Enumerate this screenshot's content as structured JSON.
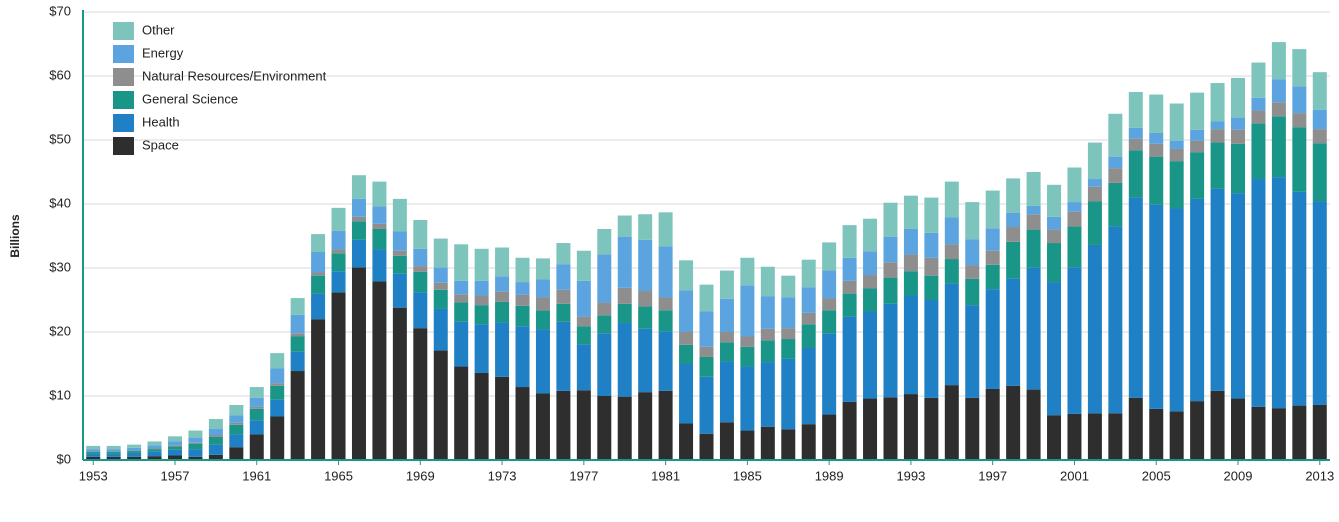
{
  "chart_data": {
    "type": "stacked-bar",
    "y_label": "Billions",
    "categories": [
      "1953",
      null,
      null,
      null,
      "1957",
      null,
      null,
      null,
      "1961",
      null,
      null,
      null,
      "1965",
      null,
      null,
      null,
      "1969",
      null,
      null,
      null,
      "1973",
      null,
      null,
      null,
      "1977",
      null,
      null,
      null,
      "1981",
      null,
      null,
      null,
      "1985",
      null,
      null,
      null,
      "1989",
      null,
      null,
      null,
      "1993",
      null,
      null,
      null,
      "1997",
      null,
      null,
      null,
      "2001",
      null,
      null,
      null,
      "2005",
      null,
      null,
      null,
      "2009",
      null,
      null,
      null,
      "2013"
    ],
    "series": [
      {
        "name": "Space",
        "color": "#2e2e2e",
        "values": [
          0.5,
          0.5,
          0.5,
          0.6,
          0.7,
          0.5,
          0.8,
          2.0,
          4.0,
          6.8,
          13.9,
          22.0,
          26.2,
          30.1,
          27.9,
          23.8,
          20.6,
          17.1,
          14.6,
          13.6,
          13.0,
          11.4,
          10.4,
          10.8,
          10.9,
          10.0,
          9.9,
          10.6,
          10.8,
          5.7,
          4.1,
          5.9,
          4.6,
          5.2,
          4.8,
          5.6,
          7.1,
          9.1,
          9.6,
          9.8,
          10.3,
          9.7,
          11.7,
          9.7,
          11.1,
          11.6,
          11.0,
          7.0,
          7.2,
          7.3,
          7.3,
          9.7,
          8.0,
          7.6,
          9.2,
          10.8,
          9.6,
          8.3,
          8.1,
          8.5,
          8.6
        ]
      },
      {
        "name": "Health",
        "color": "#1f80c6",
        "values": [
          0.5,
          0.5,
          0.6,
          0.7,
          0.9,
          1.2,
          1.6,
          2.0,
          2.2,
          2.6,
          3.0,
          4.0,
          3.3,
          4.3,
          5.0,
          5.3,
          5.6,
          6.5,
          7.0,
          7.6,
          8.5,
          9.5,
          10.0,
          10.8,
          7.2,
          9.8,
          11.5,
          9.9,
          9.3,
          9.3,
          8.9,
          9.5,
          10.0,
          10.1,
          11.0,
          11.9,
          12.7,
          13.3,
          13.6,
          14.6,
          15.4,
          15.3,
          15.9,
          14.5,
          15.6,
          16.8,
          19.1,
          20.8,
          22.9,
          26.3,
          29.2,
          31.3,
          31.9,
          31.7,
          31.6,
          31.6,
          32.1,
          35.6,
          36.1,
          33.4,
          31.8
        ]
      },
      {
        "name": "General Science",
        "color": "#1a9689",
        "values": [
          0.3,
          0.3,
          0.3,
          0.4,
          0.5,
          0.8,
          1.2,
          1.5,
          1.8,
          2.2,
          2.4,
          2.8,
          2.8,
          2.9,
          3.2,
          2.8,
          3.2,
          3.0,
          3.0,
          3.0,
          3.2,
          3.2,
          3.0,
          2.8,
          2.8,
          2.8,
          3.0,
          3.5,
          3.3,
          3.0,
          3.1,
          3.0,
          3.1,
          3.4,
          3.1,
          3.7,
          3.6,
          3.6,
          3.6,
          4.1,
          3.8,
          3.8,
          3.8,
          4.1,
          3.8,
          5.7,
          5.9,
          6.1,
          6.4,
          6.8,
          6.8,
          7.4,
          7.5,
          7.4,
          7.3,
          7.2,
          7.7,
          8.7,
          9.5,
          10.1,
          9.1
        ]
      },
      {
        "name": "Natural Resources/Environment",
        "color": "#8e8e8e",
        "values": [
          0.1,
          0.1,
          0.1,
          0.1,
          0.2,
          0.2,
          0.3,
          0.3,
          0.3,
          0.4,
          0.5,
          0.5,
          0.6,
          0.7,
          0.8,
          0.8,
          0.9,
          1.1,
          1.3,
          1.5,
          1.6,
          1.7,
          2.0,
          2.2,
          1.5,
          2.0,
          2.5,
          2.4,
          2.0,
          2.0,
          1.6,
          1.6,
          1.6,
          1.8,
          1.7,
          1.8,
          1.9,
          2.0,
          2.1,
          2.4,
          2.6,
          2.8,
          2.3,
          2.1,
          2.2,
          2.3,
          2.4,
          2.1,
          2.3,
          2.3,
          2.3,
          1.8,
          2.0,
          1.9,
          1.8,
          2.1,
          2.2,
          2.0,
          2.2,
          2.2,
          2.2
        ]
      },
      {
        "name": "Energy",
        "color": "#5ba4e0",
        "values": [
          0.3,
          0.3,
          0.4,
          0.5,
          0.6,
          0.8,
          1.0,
          1.2,
          1.4,
          2.3,
          2.9,
          3.2,
          2.9,
          2.8,
          2.7,
          3.0,
          2.7,
          2.4,
          2.1,
          2.3,
          2.4,
          2.0,
          2.8,
          4.0,
          5.6,
          7.5,
          8.0,
          8.0,
          8.0,
          6.5,
          5.5,
          5.2,
          8.0,
          5.1,
          4.8,
          4.0,
          4.3,
          3.6,
          3.7,
          4.0,
          4.0,
          3.9,
          4.2,
          4.1,
          3.5,
          2.2,
          1.3,
          2.0,
          1.5,
          1.2,
          1.8,
          1.7,
          1.7,
          1.3,
          1.7,
          1.2,
          1.9,
          2.0,
          3.6,
          4.2,
          3.0
        ]
      },
      {
        "name": "Other",
        "color": "#7dc4bc",
        "values": [
          0.5,
          0.5,
          0.5,
          0.6,
          0.8,
          1.1,
          1.5,
          1.6,
          1.7,
          2.4,
          2.6,
          2.8,
          3.6,
          3.7,
          3.9,
          5.1,
          4.5,
          4.5,
          5.7,
          5.0,
          4.5,
          3.8,
          3.3,
          3.3,
          4.7,
          4.0,
          3.3,
          4.0,
          5.3,
          4.7,
          4.2,
          4.4,
          4.3,
          4.6,
          3.4,
          4.3,
          4.4,
          5.1,
          5.1,
          5.3,
          5.2,
          5.5,
          5.6,
          5.8,
          5.9,
          5.4,
          5.3,
          5.0,
          5.4,
          5.7,
          6.7,
          5.6,
          6.0,
          5.8,
          5.8,
          6.0,
          6.2,
          5.5,
          5.8,
          5.8,
          5.9
        ]
      }
    ],
    "ylim": [
      0,
      70
    ],
    "yticks": [
      {
        "value": 0,
        "label": "$0"
      },
      {
        "value": 10,
        "label": "$10"
      },
      {
        "value": 20,
        "label": "$20"
      },
      {
        "value": 30,
        "label": "$30"
      },
      {
        "value": 40,
        "label": "$40"
      },
      {
        "value": 50,
        "label": "$50"
      },
      {
        "value": 60,
        "label": "$60"
      },
      {
        "value": 70,
        "label": "$70"
      }
    ],
    "grid": true,
    "legend": "top-left"
  }
}
